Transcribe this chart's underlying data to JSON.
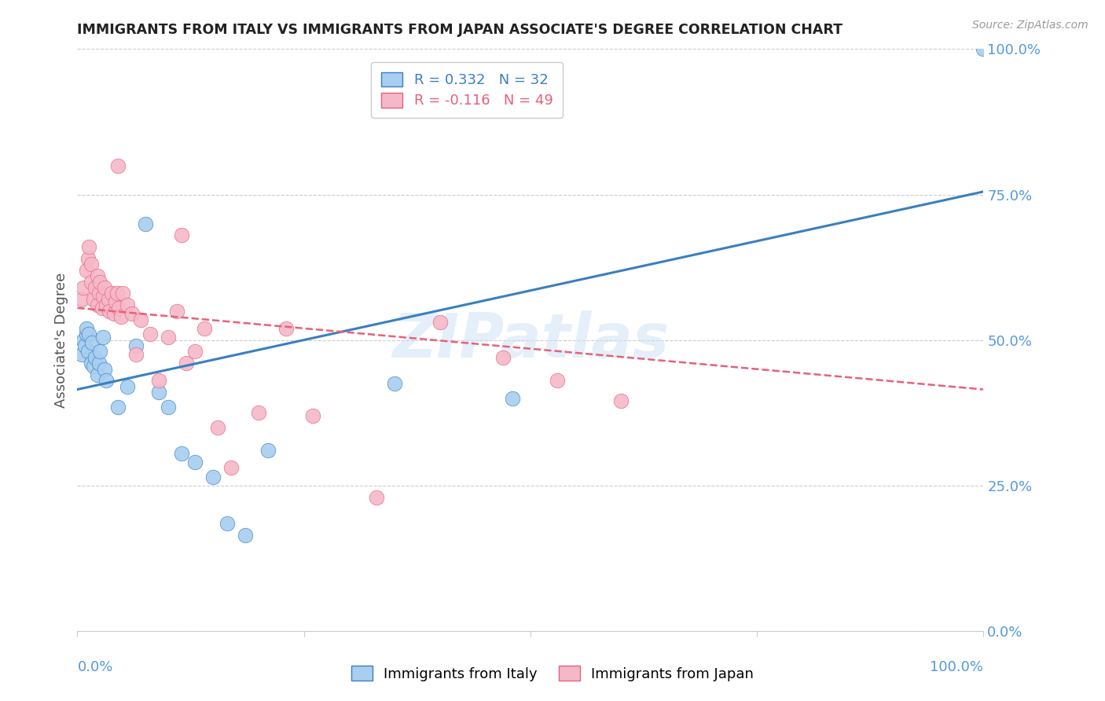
{
  "title": "IMMIGRANTS FROM ITALY VS IMMIGRANTS FROM JAPAN ASSOCIATE'S DEGREE CORRELATION CHART",
  "source": "Source: ZipAtlas.com",
  "ylabel": "Associate's Degree",
  "ytick_values": [
    0.0,
    0.25,
    0.5,
    0.75,
    1.0
  ],
  "ytick_labels": [
    "0.0%",
    "25.0%",
    "50.0%",
    "75.0%",
    "100.0%"
  ],
  "xlim": [
    0.0,
    1.0
  ],
  "ylim": [
    0.0,
    1.0
  ],
  "watermark": "ZIPatlas",
  "legend_italy_text": "R = 0.332   N = 32",
  "legend_japan_text": "R = -0.116   N = 49",
  "italy_color": "#a8cef0",
  "japan_color": "#f5b8c8",
  "italy_line_color": "#3a7fc1",
  "japan_line_color": "#e8607a",
  "grid_color": "#cccccc",
  "tick_label_color": "#5599dd",
  "title_color": "#222222",
  "italy_line_y_start": 0.415,
  "italy_line_y_end": 0.755,
  "japan_line_y_start": 0.555,
  "japan_line_y_end": 0.415,
  "dot_size": 180,
  "italy_scatter_x": [
    0.005,
    0.007,
    0.008,
    0.01,
    0.01,
    0.012,
    0.013,
    0.015,
    0.016,
    0.018,
    0.02,
    0.022,
    0.024,
    0.025,
    0.028,
    0.03,
    0.032,
    0.045,
    0.055,
    0.065,
    0.075,
    0.09,
    0.1,
    0.115,
    0.13,
    0.15,
    0.165,
    0.185,
    0.21,
    0.35,
    0.48,
    1.0
  ],
  "italy_scatter_y": [
    0.475,
    0.5,
    0.49,
    0.51,
    0.52,
    0.48,
    0.51,
    0.46,
    0.495,
    0.455,
    0.47,
    0.44,
    0.46,
    0.48,
    0.505,
    0.45,
    0.43,
    0.385,
    0.42,
    0.49,
    0.7,
    0.41,
    0.385,
    0.305,
    0.29,
    0.265,
    0.185,
    0.165,
    0.31,
    0.425,
    0.4,
    1.0
  ],
  "japan_scatter_x": [
    0.005,
    0.007,
    0.01,
    0.012,
    0.013,
    0.015,
    0.015,
    0.018,
    0.02,
    0.022,
    0.022,
    0.024,
    0.025,
    0.027,
    0.028,
    0.03,
    0.032,
    0.034,
    0.035,
    0.038,
    0.04,
    0.042,
    0.044,
    0.046,
    0.048,
    0.05,
    0.055,
    0.06,
    0.065,
    0.07,
    0.08,
    0.09,
    0.1,
    0.11,
    0.12,
    0.13,
    0.14,
    0.155,
    0.2,
    0.23,
    0.26,
    0.33,
    0.4,
    0.47,
    0.53,
    0.6,
    0.115,
    0.17,
    0.045
  ],
  "japan_scatter_y": [
    0.57,
    0.59,
    0.62,
    0.64,
    0.66,
    0.6,
    0.63,
    0.57,
    0.59,
    0.61,
    0.56,
    0.58,
    0.6,
    0.555,
    0.575,
    0.59,
    0.56,
    0.57,
    0.55,
    0.58,
    0.545,
    0.565,
    0.58,
    0.555,
    0.54,
    0.58,
    0.56,
    0.545,
    0.475,
    0.535,
    0.51,
    0.43,
    0.505,
    0.55,
    0.46,
    0.48,
    0.52,
    0.35,
    0.375,
    0.52,
    0.37,
    0.23,
    0.53,
    0.47,
    0.43,
    0.395,
    0.68,
    0.28,
    0.8
  ],
  "bottom_legend_labels": [
    "Immigrants from Italy",
    "Immigrants from Japan"
  ]
}
